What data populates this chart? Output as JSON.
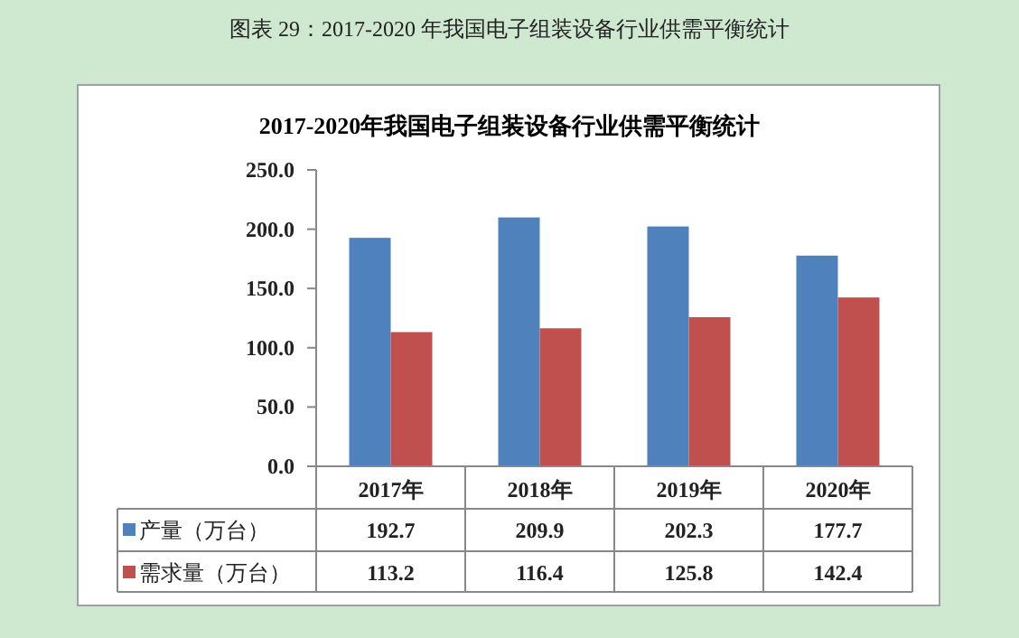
{
  "chart_data": {
    "type": "bar",
    "title": "2017-2020年我国电子组装设备行业供需平衡统计",
    "annotations": [
      "图表  29：2017-2020 年我国电子组装设备行业供需平衡统计"
    ],
    "categories": [
      "2017年",
      "2018年",
      "2019年",
      "2020年"
    ],
    "series": [
      {
        "name": "产量（万台）",
        "color": "#4f81bd",
        "values": [
          192.7,
          209.9,
          202.3,
          177.7
        ]
      },
      {
        "name": "需求量（万台）",
        "color": "#c0504d",
        "values": [
          113.2,
          116.4,
          125.8,
          142.4
        ]
      }
    ],
    "ylim": [
      0,
      250
    ],
    "yticks": [
      {
        "value": 0,
        "label": "0.0"
      },
      {
        "value": 50,
        "label": "50.0"
      },
      {
        "value": 100,
        "label": "100.0"
      },
      {
        "value": 150,
        "label": "150.0"
      },
      {
        "value": 200,
        "label": "200.0"
      },
      {
        "value": 250,
        "label": "250.0"
      }
    ],
    "grid": false,
    "legend": "bottom",
    "data_labels": true
  }
}
